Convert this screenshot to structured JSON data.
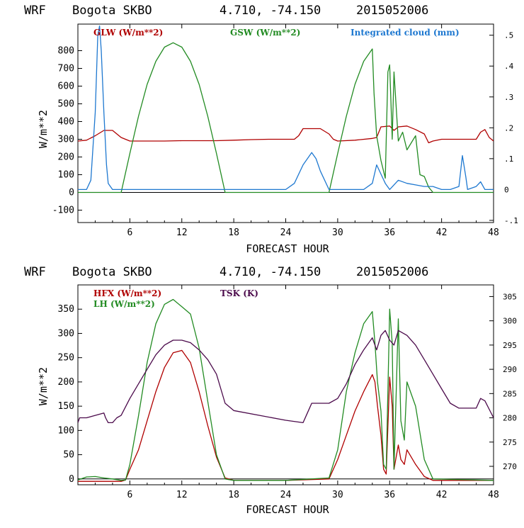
{
  "chart_data": [
    {
      "type": "line",
      "title_parts": [
        "WRF",
        "Bogota SKBO",
        "4.710, -74.150",
        "2015052006"
      ],
      "xlabel": "FORECAST HOUR",
      "ylabel": "W/m**2",
      "xlim": [
        0,
        48
      ],
      "xticks": [
        "6",
        "12",
        "18",
        "24",
        "30",
        "36",
        "42",
        "48"
      ],
      "ylim": [
        -170,
        950
      ],
      "yticks": [
        "800",
        "700",
        "600",
        "500",
        "400",
        "300",
        "200",
        "100",
        "0",
        "-100"
      ],
      "y2lim": [
        -0.107,
        0.536
      ],
      "y2ticks": [
        ".5",
        ".4",
        ".3",
        ".2",
        ".1",
        "0",
        "-.1"
      ],
      "colors": {
        "GLW": "#b00000",
        "GSW": "#228b22",
        "CLOUD": "#1e78d0"
      },
      "series": [
        {
          "name": "GLW (W/m**2)",
          "axis": "left",
          "color": "#b00000",
          "x": [
            0,
            1,
            2,
            3,
            4,
            5,
            6,
            8,
            10,
            12,
            14,
            16,
            18,
            20,
            22,
            24,
            25,
            25.5,
            26,
            28,
            29,
            29.5,
            30,
            32,
            34,
            34.5,
            35,
            36,
            36.5,
            37,
            38,
            39,
            40,
            40.5,
            41,
            42,
            44,
            46,
            46.5,
            47,
            47.5,
            48
          ],
          "values": [
            290,
            295,
            320,
            350,
            350,
            310,
            290,
            290,
            290,
            292,
            292,
            292,
            295,
            298,
            300,
            300,
            300,
            320,
            360,
            360,
            330,
            300,
            290,
            295,
            305,
            310,
            370,
            375,
            350,
            370,
            375,
            355,
            330,
            280,
            290,
            300,
            300,
            300,
            340,
            355,
            310,
            290
          ]
        },
        {
          "name": "GSW (W/m**2)",
          "axis": "left",
          "color": "#228b22",
          "x": [
            0,
            5,
            6,
            7,
            8,
            9,
            10,
            11,
            12,
            13,
            14,
            15,
            16,
            17,
            18,
            24,
            29,
            30,
            31,
            32,
            33,
            34,
            34.2,
            34.5,
            35,
            35.5,
            35.8,
            36,
            36.3,
            36.5,
            37,
            37.5,
            38,
            39,
            39.5,
            40,
            40.5,
            41,
            48
          ],
          "values": [
            0,
            0,
            220,
            430,
            610,
            740,
            820,
            845,
            820,
            740,
            610,
            430,
            220,
            0,
            0,
            0,
            0,
            220,
            430,
            610,
            740,
            810,
            560,
            320,
            180,
            80,
            680,
            720,
            300,
            680,
            290,
            340,
            240,
            320,
            100,
            90,
            30,
            0,
            0
          ]
        },
        {
          "name": "Integrated cloud (mm)",
          "axis": "right",
          "color": "#1e78d0",
          "x": [
            0,
            1,
            1.5,
            2,
            2.3,
            2.5,
            2.7,
            3,
            3.3,
            3.5,
            4,
            4.5,
            6,
            12,
            18,
            24,
            25,
            26,
            27,
            27.5,
            28,
            29,
            30,
            32,
            33,
            34,
            34.5,
            35,
            35.5,
            36,
            37,
            38,
            39,
            40,
            41,
            42,
            43,
            44,
            44.4,
            44.8,
            45,
            46,
            46.5,
            47,
            48
          ],
          "values": [
            0,
            0,
            0.03,
            0.25,
            0.5,
            0.53,
            0.45,
            0.25,
            0.08,
            0.02,
            0,
            0,
            0,
            0,
            0,
            0,
            0.02,
            0.08,
            0.12,
            0.1,
            0.06,
            0,
            0,
            0,
            0,
            0.02,
            0.08,
            0.05,
            0.02,
            0,
            0.03,
            0.02,
            0.015,
            0.01,
            0.01,
            0,
            0,
            0.01,
            0.11,
            0.04,
            0,
            0.01,
            0.025,
            0,
            0
          ]
        }
      ],
      "legend": [
        "GLW (W/m**2)",
        "GSW (W/m**2)",
        "Integrated cloud (mm)"
      ]
    },
    {
      "type": "line",
      "title_parts": [
        "WRF",
        "Bogota SKBO",
        "4.710, -74.150",
        "2015052006"
      ],
      "xlabel": "FORECAST HOUR",
      "ylabel": "W/m**2",
      "xlim": [
        0,
        48
      ],
      "xticks": [
        "6",
        "12",
        "18",
        "24",
        "30",
        "36",
        "42",
        "48"
      ],
      "ylim": [
        -12,
        400
      ],
      "yticks": [
        "350",
        "300",
        "250",
        "200",
        "150",
        "100",
        "50",
        "0"
      ],
      "y2lim": [
        266.2,
        307.4
      ],
      "y2ticks": [
        "305",
        "300",
        "295",
        "290",
        "285",
        "280",
        "275",
        "270"
      ],
      "colors": {
        "HFX": "#b00000",
        "LH": "#228b22",
        "TSK": "#4b0a4b"
      },
      "series": [
        {
          "name": "HFX (W/m**2)",
          "axis": "left",
          "color": "#b00000",
          "x": [
            0,
            5,
            5.5,
            6,
            7,
            8,
            9,
            10,
            11,
            12,
            13,
            14,
            15,
            16,
            17,
            18,
            24,
            29,
            30,
            31,
            32,
            33,
            34,
            34.3,
            34.6,
            35,
            35.3,
            35.6,
            36,
            36.3,
            36.5,
            37,
            37.3,
            37.7,
            38,
            39,
            40,
            41,
            48
          ],
          "values": [
            -5,
            -5,
            -2,
            20,
            60,
            120,
            180,
            230,
            260,
            265,
            240,
            180,
            110,
            45,
            2,
            -3,
            -3,
            0,
            40,
            90,
            140,
            180,
            215,
            200,
            150,
            90,
            20,
            10,
            210,
            150,
            20,
            70,
            40,
            30,
            60,
            30,
            5,
            -3,
            -3
          ]
        },
        {
          "name": "LH (W/m**2)",
          "axis": "left",
          "color": "#228b22",
          "x": [
            0,
            1,
            2,
            3,
            4,
            5,
            5.5,
            6,
            7,
            8,
            9,
            10,
            11,
            12,
            13,
            14,
            15,
            16,
            17,
            18,
            24,
            29,
            30,
            31,
            32,
            33,
            34,
            34.3,
            34.6,
            35,
            35.3,
            35.6,
            36,
            36.3,
            36.5,
            37,
            37.3,
            37.7,
            38,
            39,
            40,
            41,
            48
          ],
          "values": [
            -2,
            4,
            5,
            2,
            0,
            -3,
            -2,
            30,
            130,
            240,
            320,
            360,
            370,
            355,
            340,
            270,
            160,
            50,
            0,
            -3,
            -3,
            2,
            60,
            180,
            260,
            320,
            345,
            280,
            200,
            140,
            30,
            20,
            350,
            280,
            20,
            330,
            120,
            80,
            200,
            150,
            40,
            0,
            -3
          ]
        },
        {
          "name": "TSK (K)",
          "axis": "right",
          "color": "#4b0a4b",
          "x": [
            0,
            0.2,
            1,
            2,
            3,
            3.2,
            3.5,
            4,
            4.5,
            5,
            6,
            7,
            8,
            9,
            10,
            11,
            12,
            13,
            14,
            15,
            16,
            16.5,
            17,
            18,
            24,
            26,
            26.5,
            27,
            28,
            29,
            30,
            31,
            32,
            33,
            34,
            34.5,
            35,
            35.5,
            36,
            36.5,
            37,
            38,
            39,
            40,
            41,
            42,
            43,
            44,
            45,
            46,
            46.5,
            47,
            48
          ],
          "values": [
            279,
            280,
            280,
            280.5,
            281,
            280,
            279,
            279,
            280,
            280.5,
            284,
            287,
            290,
            293,
            295,
            296,
            296,
            295.5,
            294,
            292,
            289,
            286,
            283,
            281.5,
            279.5,
            279,
            281,
            283,
            283,
            283,
            284,
            287,
            291,
            294,
            296.5,
            294,
            297,
            298,
            296,
            295,
            298,
            297,
            295,
            292,
            289,
            286,
            283,
            282,
            282,
            282,
            284,
            283.5,
            280
          ]
        }
      ],
      "legend": [
        "HFX (W/m**2)",
        "LH (W/m**2)",
        "TSK (K)"
      ]
    }
  ]
}
